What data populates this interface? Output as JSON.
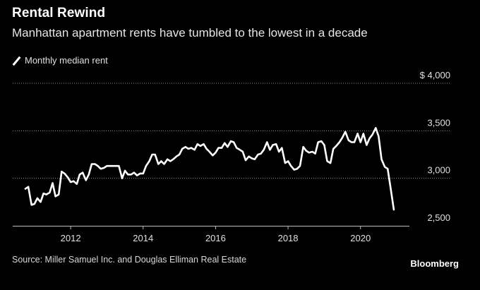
{
  "header": {
    "title": "Rental Rewind",
    "subtitle": "Manhattan apartment rents have tumbled to the lowest in a decade"
  },
  "legend": {
    "label": "Monthly median rent"
  },
  "footer": {
    "source": "Source: Miller Samuel Inc. and Douglas Elliman Real Estate",
    "brand": "Bloomberg"
  },
  "chart_data": {
    "type": "line",
    "title": "Rental Rewind",
    "subtitle": "Manhattan apartment rents have tumbled to the lowest in a decade",
    "xlabel": "",
    "ylabel": "",
    "xlim": [
      2010.4,
      2021.35
    ],
    "ylim": [
      2500,
      4000
    ],
    "x_ticks": [
      2012,
      2014,
      2016,
      2018,
      2020
    ],
    "x_tick_labels": [
      "2012",
      "2014",
      "2016",
      "2018",
      "2020"
    ],
    "y_ticks": [
      2500,
      3000,
      3500,
      4000
    ],
    "y_tick_labels": [
      "2,500",
      "3,000",
      "3,500",
      "$ 4,000"
    ],
    "grid": "horizontal-dotted",
    "legend_position": "top-left",
    "series": [
      {
        "name": "Monthly median rent",
        "color": "#ffffff",
        "x": [
          2010.75,
          2010.83,
          2010.92,
          2011.0,
          2011.08,
          2011.17,
          2011.25,
          2011.33,
          2011.42,
          2011.5,
          2011.58,
          2011.67,
          2011.75,
          2011.83,
          2011.92,
          2012.0,
          2012.08,
          2012.17,
          2012.25,
          2012.33,
          2012.42,
          2012.5,
          2012.58,
          2012.67,
          2012.75,
          2012.83,
          2012.92,
          2013.0,
          2013.08,
          2013.17,
          2013.25,
          2013.33,
          2013.42,
          2013.5,
          2013.58,
          2013.67,
          2013.75,
          2013.83,
          2013.92,
          2014.0,
          2014.08,
          2014.17,
          2014.25,
          2014.33,
          2014.42,
          2014.5,
          2014.58,
          2014.67,
          2014.75,
          2014.83,
          2014.92,
          2015.0,
          2015.08,
          2015.17,
          2015.25,
          2015.33,
          2015.42,
          2015.5,
          2015.58,
          2015.67,
          2015.75,
          2015.83,
          2015.92,
          2016.0,
          2016.08,
          2016.17,
          2016.25,
          2016.33,
          2016.42,
          2016.5,
          2016.58,
          2016.67,
          2016.75,
          2016.83,
          2016.92,
          2017.0,
          2017.08,
          2017.17,
          2017.25,
          2017.33,
          2017.42,
          2017.5,
          2017.58,
          2017.67,
          2017.75,
          2017.83,
          2017.92,
          2018.0,
          2018.08,
          2018.17,
          2018.25,
          2018.33,
          2018.42,
          2018.5,
          2018.58,
          2018.67,
          2018.75,
          2018.83,
          2018.92,
          2019.0,
          2019.08,
          2019.17,
          2019.25,
          2019.33,
          2019.42,
          2019.5,
          2019.58,
          2019.67,
          2019.75,
          2019.83,
          2019.92,
          2020.0,
          2020.08,
          2020.17,
          2020.25,
          2020.33,
          2020.42,
          2020.5,
          2020.58,
          2020.67,
          2020.75,
          2020.83,
          2020.92
        ],
        "values": [
          2890,
          2910,
          2720,
          2730,
          2790,
          2750,
          2840,
          2830,
          2850,
          2950,
          2810,
          2830,
          3070,
          3050,
          3010,
          2960,
          2970,
          2940,
          3040,
          3060,
          2980,
          3040,
          3150,
          3150,
          3130,
          3100,
          3110,
          3130,
          3130,
          3130,
          3130,
          3130,
          3000,
          3080,
          3040,
          3040,
          3060,
          3030,
          3050,
          3050,
          3130,
          3180,
          3250,
          3250,
          3150,
          3180,
          3150,
          3200,
          3180,
          3200,
          3230,
          3250,
          3310,
          3330,
          3310,
          3320,
          3300,
          3360,
          3340,
          3360,
          3310,
          3280,
          3240,
          3270,
          3320,
          3320,
          3370,
          3330,
          3390,
          3380,
          3320,
          3300,
          3280,
          3190,
          3230,
          3210,
          3200,
          3250,
          3260,
          3300,
          3380,
          3300,
          3350,
          3360,
          3280,
          3320,
          3160,
          3180,
          3130,
          3090,
          3100,
          3130,
          3330,
          3290,
          3270,
          3280,
          3260,
          3380,
          3390,
          3350,
          3180,
          3160,
          3310,
          3340,
          3380,
          3430,
          3490,
          3400,
          3380,
          3380,
          3470,
          3380,
          3470,
          3350,
          3420,
          3460,
          3530,
          3440,
          3200,
          3120,
          3100,
          2900,
          2670
        ]
      }
    ]
  }
}
